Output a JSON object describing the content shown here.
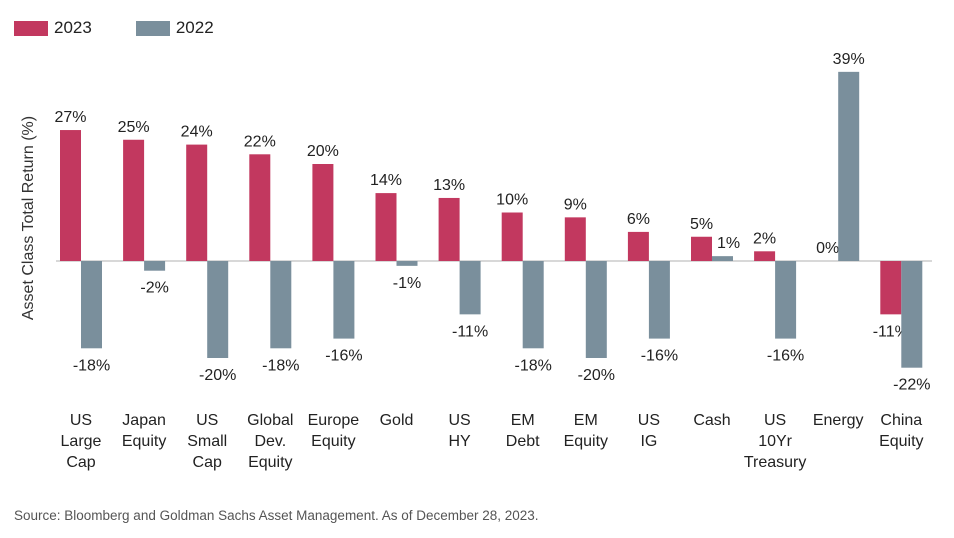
{
  "colors": {
    "s2023": "#c2385f",
    "s2022": "#7a8f9c",
    "axis": "#b0b0b0"
  },
  "source": "Source: Bloomberg and Goldman Sachs Asset Management. As of December 28, 2023.",
  "chart_data": {
    "type": "bar",
    "ylabel": "Asset Class Total Return (%)",
    "legend_position": "top-left",
    "grid": false,
    "ylim": [
      -25,
      42
    ],
    "categories": [
      [
        "US",
        "Large",
        "Cap"
      ],
      [
        "Japan",
        "Equity"
      ],
      [
        "US",
        "Small",
        "Cap"
      ],
      [
        "Global",
        "Dev.",
        "Equity"
      ],
      [
        "Europe",
        "Equity"
      ],
      [
        "Gold"
      ],
      [
        "US",
        "HY"
      ],
      [
        "EM",
        "Debt"
      ],
      [
        "EM",
        "Equity"
      ],
      [
        "US",
        "IG"
      ],
      [
        "Cash"
      ],
      [
        "US",
        "10Yr",
        "Treasury"
      ],
      [
        "Energy"
      ],
      [
        "China",
        "Equity"
      ]
    ],
    "series": [
      {
        "name": "2023",
        "values": [
          27,
          25,
          24,
          22,
          20,
          14,
          13,
          10,
          9,
          6,
          5,
          2,
          0,
          -11
        ],
        "labels": [
          "27%",
          "25%",
          "24%",
          "22%",
          "20%",
          "14%",
          "13%",
          "10%",
          "9%",
          "6%",
          "5%",
          "2%",
          "0%",
          "-11%"
        ]
      },
      {
        "name": "2022",
        "values": [
          -18,
          -2,
          -20,
          -18,
          -16,
          -1,
          -11,
          -18,
          -20,
          -16,
          1,
          -16,
          39,
          -22
        ],
        "labels": [
          "-18%",
          "-2%",
          "-20%",
          "-18%",
          "-16%",
          "-1%",
          "-11%",
          "-18%",
          "-20%",
          "-16%",
          "1%",
          "-16%",
          "39%",
          "-22%"
        ]
      }
    ]
  }
}
